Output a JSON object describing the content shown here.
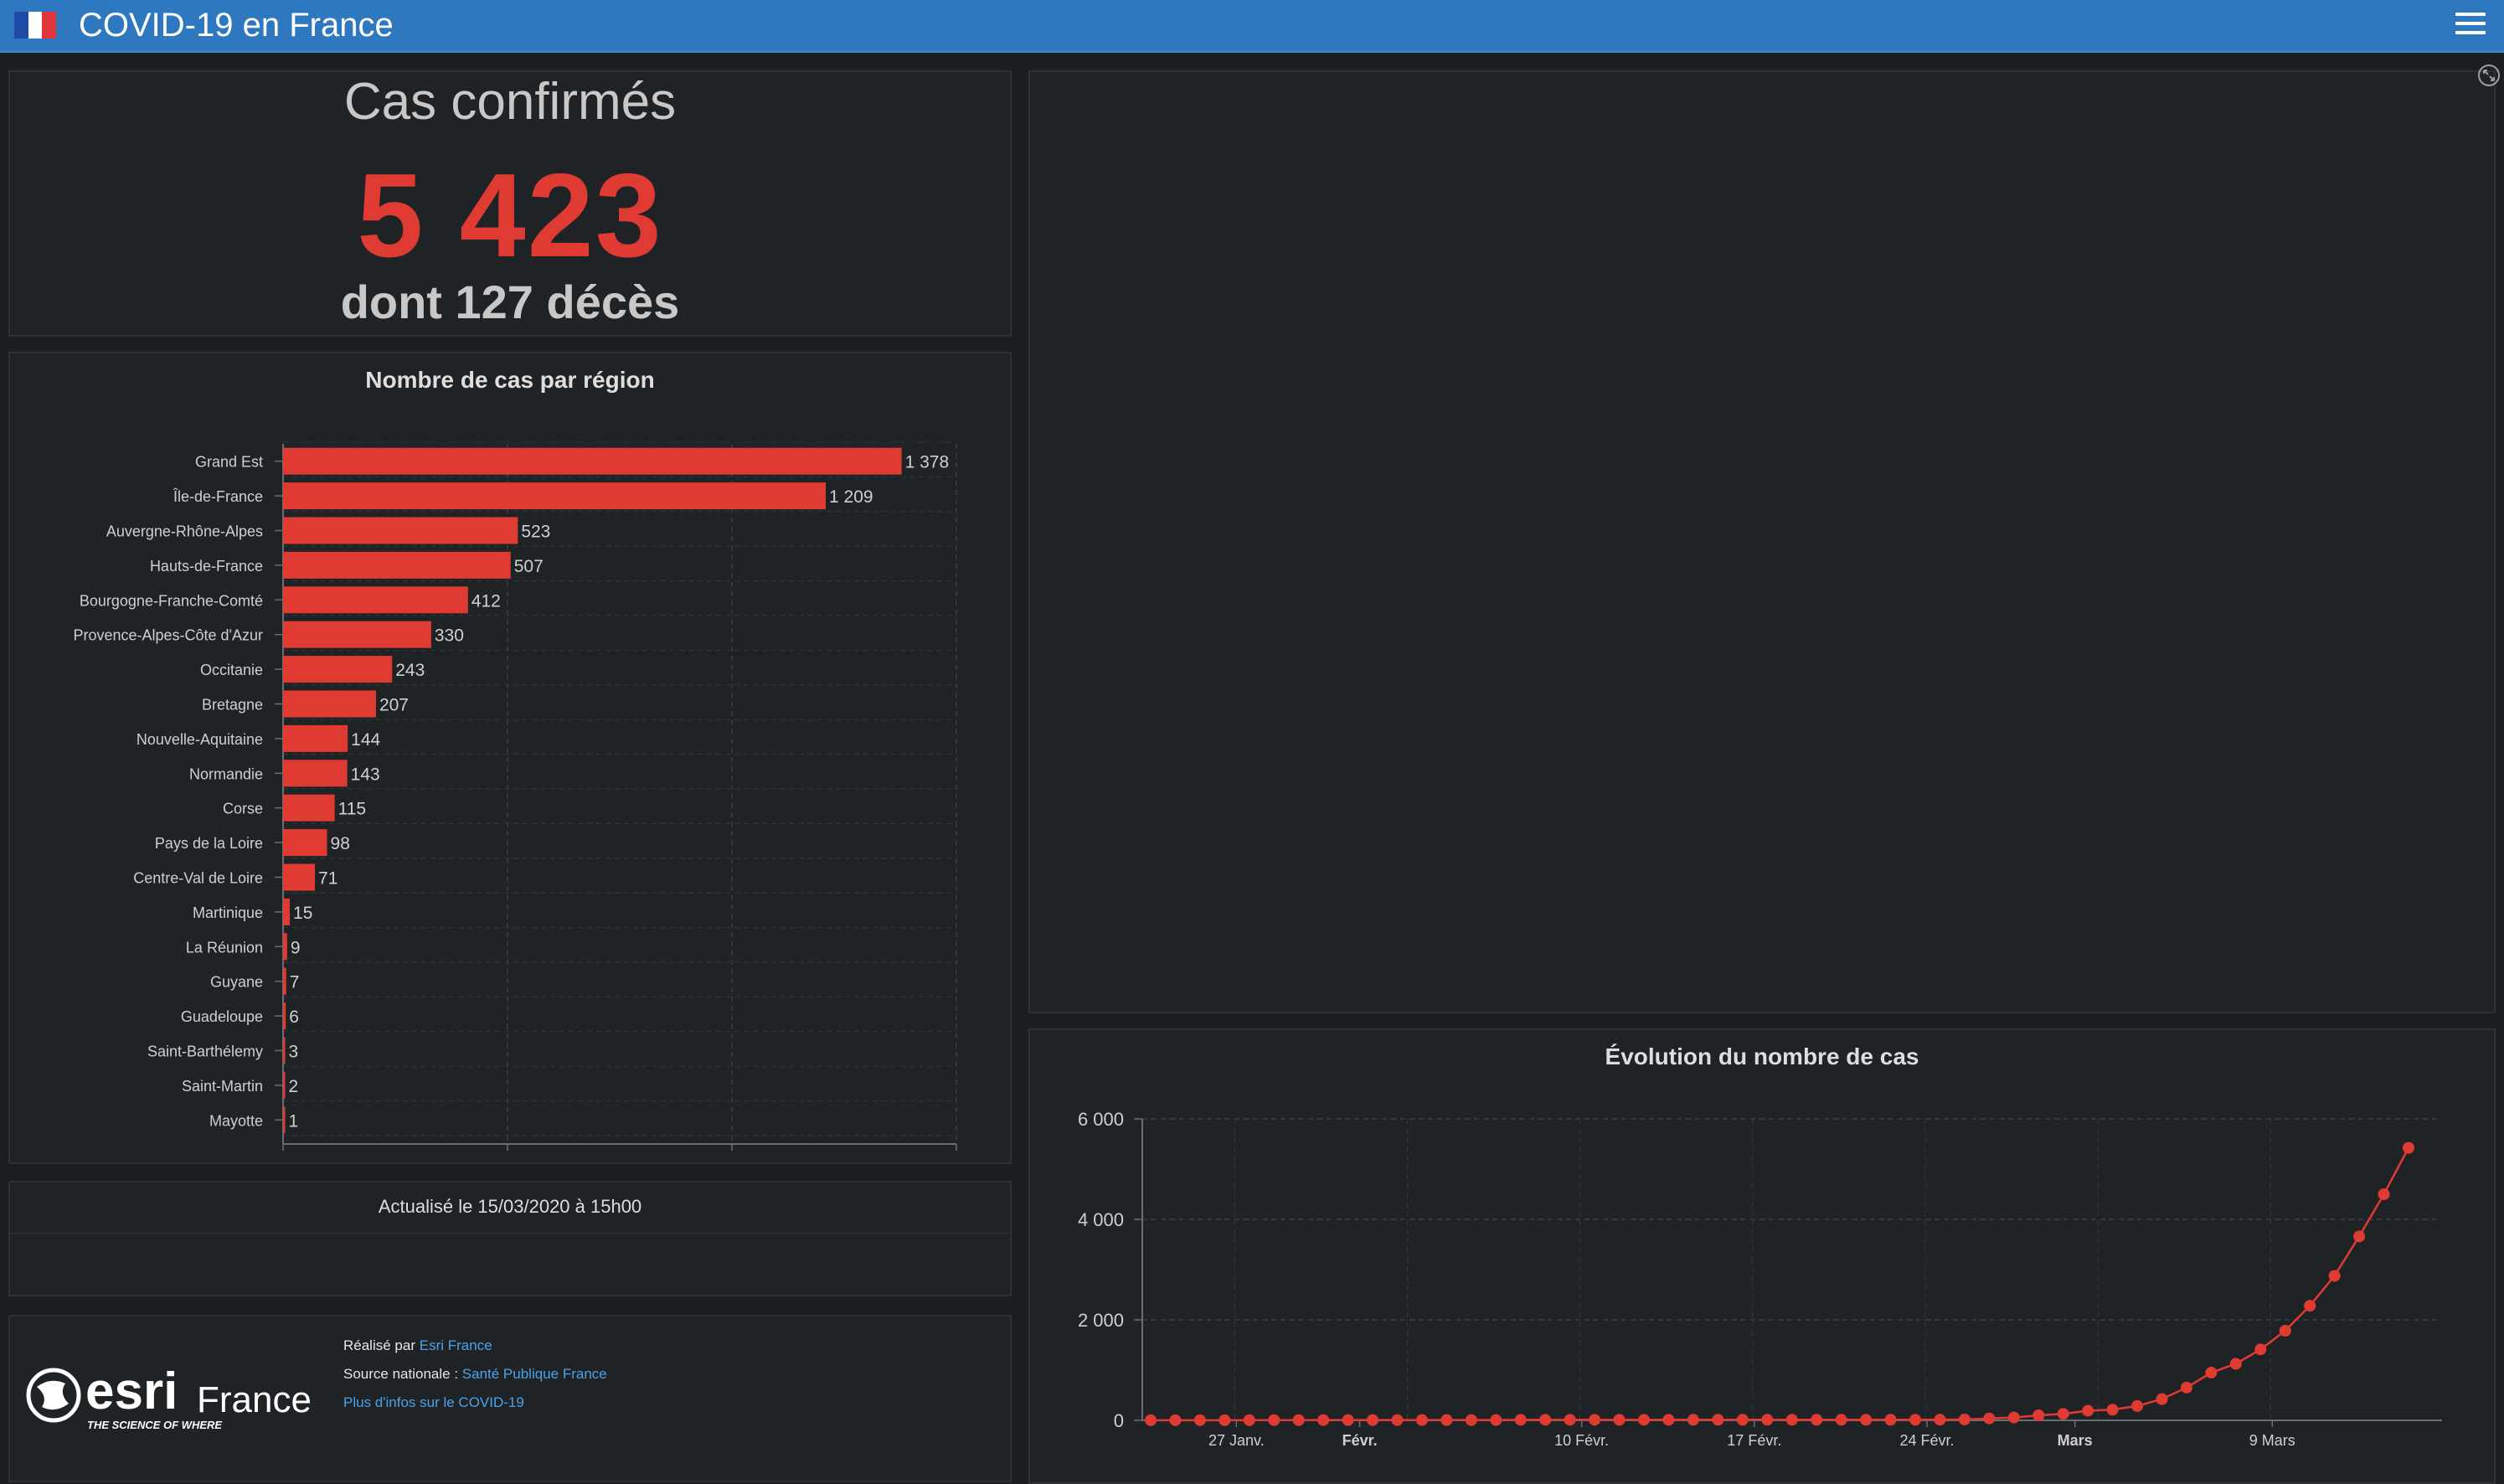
{
  "header": {
    "title": "COVID-19 en France",
    "flag_colors": [
      "#1f4aa8",
      "#ffffff",
      "#e0353a"
    ]
  },
  "kpi": {
    "title": "Cas confirmés",
    "value": "5 423",
    "subtitle": "dont 127 décès"
  },
  "region_chart": {
    "title": "Nombre de cas par région"
  },
  "update": {
    "text": "Actualisé le 15/03/2020 à 15h00"
  },
  "credits": {
    "made_by_prefix": "Réalisé par",
    "made_by_link": "Esri France",
    "source_prefix": "Source nationale :",
    "source_link": "Santé Publique France",
    "more_info_link": "Plus d'infos sur le COVID-19"
  },
  "logo": {
    "brand": "esri",
    "country": "France",
    "tagline": "THE SCIENCE OF WHERE"
  },
  "evolution_chart": {
    "title": "Évolution du nombre de cas"
  },
  "colors": {
    "accent": "#e03b33",
    "header_bg": "#2d78be",
    "link": "#4aa2e8"
  },
  "chart_data": [
    {
      "type": "bar",
      "orientation": "horizontal",
      "title": "Nombre de cas par région",
      "categories": [
        "Grand Est",
        "Île-de-France",
        "Auvergne-Rhône-Alpes",
        "Hauts-de-France",
        "Bourgogne-Franche-Comté",
        "Provence-Alpes-Côte d'Azur",
        "Occitanie",
        "Bretagne",
        "Nouvelle-Aquitaine",
        "Normandie",
        "Corse",
        "Pays de la Loire",
        "Centre-Val de Loire",
        "Martinique",
        "La Réunion",
        "Guyane",
        "Guadeloupe",
        "Saint-Barthélemy",
        "Saint-Martin",
        "Mayotte"
      ],
      "values": [
        1378,
        1209,
        523,
        507,
        412,
        330,
        243,
        207,
        144,
        143,
        115,
        98,
        71,
        15,
        9,
        7,
        6,
        3,
        2,
        1
      ],
      "value_labels": [
        "1 378",
        "1 209",
        "523",
        "507",
        "412",
        "330",
        "243",
        "207",
        "144",
        "143",
        "115",
        "98",
        "71",
        "15",
        "9",
        "7",
        "6",
        "3",
        "2",
        "1"
      ],
      "xlim": [
        0,
        1500
      ],
      "grid": true
    },
    {
      "type": "line",
      "title": "Évolution du nombre de cas",
      "x_ticks": [
        "27 Janv.",
        "Févr.",
        "10 Févr.",
        "17 Févr.",
        "24 Févr.",
        "Mars",
        "9 Mars"
      ],
      "x_tick_bold": [
        false,
        true,
        false,
        false,
        false,
        true,
        false
      ],
      "y_ticks": [
        "0",
        "2 000",
        "4 000",
        "6 000"
      ],
      "ylim": [
        0,
        6000
      ],
      "x_start": "2020-01-24",
      "x": [
        "2020-01-24",
        "2020-01-25",
        "2020-01-26",
        "2020-01-27",
        "2020-01-28",
        "2020-01-29",
        "2020-01-30",
        "2020-01-31",
        "2020-02-01",
        "2020-02-02",
        "2020-02-03",
        "2020-02-04",
        "2020-02-05",
        "2020-02-06",
        "2020-02-07",
        "2020-02-08",
        "2020-02-09",
        "2020-02-10",
        "2020-02-11",
        "2020-02-12",
        "2020-02-13",
        "2020-02-14",
        "2020-02-15",
        "2020-02-16",
        "2020-02-17",
        "2020-02-18",
        "2020-02-19",
        "2020-02-20",
        "2020-02-21",
        "2020-02-22",
        "2020-02-23",
        "2020-02-24",
        "2020-02-25",
        "2020-02-26",
        "2020-02-27",
        "2020-02-28",
        "2020-02-29",
        "2020-03-01",
        "2020-03-02",
        "2020-03-03",
        "2020-03-04",
        "2020-03-05",
        "2020-03-06",
        "2020-03-07",
        "2020-03-08",
        "2020-03-09",
        "2020-03-10",
        "2020-03-11",
        "2020-03-12",
        "2020-03-13",
        "2020-03-14",
        "2020-03-15"
      ],
      "values": [
        3,
        3,
        3,
        3,
        4,
        5,
        5,
        6,
        6,
        6,
        6,
        6,
        6,
        6,
        6,
        11,
        11,
        11,
        11,
        11,
        11,
        11,
        12,
        12,
        12,
        12,
        12,
        12,
        12,
        12,
        12,
        12,
        14,
        17,
        38,
        57,
        100,
        130,
        191,
        212,
        285,
        423,
        653,
        949,
        1126,
        1412,
        1784,
        2281,
        2876,
        3661,
        4499,
        5423
      ],
      "grid": true
    }
  ]
}
